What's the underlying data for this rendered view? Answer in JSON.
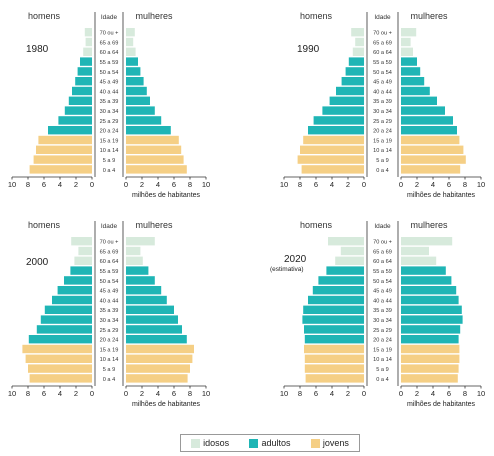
{
  "colors": {
    "idosos": "#d7eadc",
    "adultos": "#1fb5b5",
    "jovens": "#f5cf85"
  },
  "labels": {
    "homens": "homens",
    "mulheres": "mulheres",
    "idade": "Idade",
    "xlabel": "milhões de habitantes"
  },
  "legend": [
    {
      "key": "idosos",
      "label": "idosos"
    },
    {
      "key": "adultos",
      "label": "adultos"
    },
    {
      "key": "jovens",
      "label": "jovens"
    }
  ],
  "chart_data": [
    {
      "type": "bar",
      "title": "1980",
      "subtitle": "",
      "categories": [
        "70 ou +",
        "65 a 69",
        "60 a 64",
        "55 a 59",
        "50 a 54",
        "45 a 49",
        "40 a 44",
        "35 a 39",
        "30 a 34",
        "25 a 29",
        "20 a 24",
        "15 a 19",
        "10 a 14",
        "5 a 9",
        "0 a 4"
      ],
      "groups": [
        "idosos",
        "idosos",
        "idosos",
        "adultos",
        "adultos",
        "adultos",
        "adultos",
        "adultos",
        "adultos",
        "adultos",
        "adultos",
        "jovens",
        "jovens",
        "jovens",
        "jovens"
      ],
      "series": [
        {
          "name": "homens",
          "values": [
            0.9,
            0.8,
            1.1,
            1.5,
            1.8,
            2.1,
            2.5,
            2.9,
            3.4,
            4.2,
            5.5,
            6.7,
            7.0,
            7.3,
            7.8
          ]
        },
        {
          "name": "mulheres",
          "values": [
            1.1,
            0.9,
            1.2,
            1.5,
            1.8,
            2.2,
            2.6,
            3.0,
            3.6,
            4.4,
            5.6,
            6.6,
            6.9,
            7.2,
            7.6
          ]
        }
      ],
      "xlim": [
        0,
        10
      ],
      "xticks": [
        10,
        8,
        6,
        4,
        2,
        0
      ]
    },
    {
      "type": "bar",
      "title": "1990",
      "subtitle": "",
      "categories": [
        "70 ou +",
        "65 a 69",
        "60 a 64",
        "55 a 59",
        "50 a 54",
        "45 a 49",
        "40 a 44",
        "35 a 39",
        "30 a 34",
        "25 a 29",
        "20 a 24",
        "15 a 19",
        "10 a 14",
        "5 a 9",
        "0 a 4"
      ],
      "groups": [
        "idosos",
        "idosos",
        "idosos",
        "adultos",
        "adultos",
        "adultos",
        "adultos",
        "adultos",
        "adultos",
        "adultos",
        "adultos",
        "jovens",
        "jovens",
        "jovens",
        "jovens"
      ],
      "series": [
        {
          "name": "homens",
          "values": [
            1.6,
            1.1,
            1.4,
            1.9,
            2.3,
            2.8,
            3.5,
            4.3,
            5.2,
            6.3,
            7.0,
            7.6,
            8.0,
            8.3,
            7.8
          ]
        },
        {
          "name": "mulheres",
          "values": [
            1.9,
            1.2,
            1.5,
            2.0,
            2.4,
            2.9,
            3.6,
            4.5,
            5.5,
            6.5,
            7.0,
            7.3,
            7.8,
            8.1,
            7.4
          ]
        }
      ],
      "xlim": [
        0,
        10
      ],
      "xticks": [
        10,
        8,
        6,
        4,
        2,
        0
      ]
    },
    {
      "type": "bar",
      "title": "2000",
      "subtitle": "",
      "categories": [
        "70 ou +",
        "65 a 69",
        "60 a 64",
        "55 a 59",
        "50 a 54",
        "45 a 49",
        "40 a 44",
        "35 a 39",
        "30 a 34",
        "25 a 29",
        "20 a 24",
        "15 a 19",
        "10 a 14",
        "5 a 9",
        "0 a 4"
      ],
      "groups": [
        "idosos",
        "idosos",
        "idosos",
        "adultos",
        "adultos",
        "adultos",
        "adultos",
        "adultos",
        "adultos",
        "adultos",
        "adultos",
        "jovens",
        "jovens",
        "jovens",
        "jovens"
      ],
      "series": [
        {
          "name": "homens",
          "values": [
            2.6,
            1.7,
            2.2,
            2.7,
            3.5,
            4.3,
            5.0,
            5.9,
            6.4,
            6.9,
            7.9,
            8.7,
            8.3,
            8.0,
            7.8
          ]
        },
        {
          "name": "mulheres",
          "values": [
            3.6,
            1.8,
            2.1,
            2.8,
            3.6,
            4.4,
            5.1,
            6.0,
            6.5,
            7.0,
            7.6,
            8.5,
            8.3,
            8.0,
            7.7
          ]
        }
      ],
      "xlim": [
        0,
        10
      ],
      "xticks": [
        10,
        8,
        6,
        4,
        2,
        0
      ]
    },
    {
      "type": "bar",
      "title": "2020",
      "subtitle": "(estimativa)",
      "categories": [
        "70 ou +",
        "65 a 69",
        "60 a 64",
        "55 a 59",
        "50 a 54",
        "45 a 49",
        "40 a 44",
        "35 a 39",
        "30 a 34",
        "25 a 29",
        "20 a 24",
        "15 a 19",
        "10 a 14",
        "5 a 9",
        "0 a 4"
      ],
      "groups": [
        "idosos",
        "idosos",
        "idosos",
        "adultos",
        "adultos",
        "adultos",
        "adultos",
        "adultos",
        "adultos",
        "adultos",
        "adultos",
        "jovens",
        "jovens",
        "jovens",
        "jovens"
      ],
      "series": [
        {
          "name": "homens",
          "values": [
            4.5,
            2.9,
            3.6,
            4.7,
            5.7,
            6.4,
            7.0,
            7.6,
            7.7,
            7.5,
            7.4,
            7.5,
            7.4,
            7.4,
            7.3
          ]
        },
        {
          "name": "mulheres",
          "values": [
            6.4,
            3.5,
            4.4,
            5.6,
            6.3,
            6.9,
            7.2,
            7.6,
            7.7,
            7.4,
            7.2,
            7.3,
            7.3,
            7.2,
            7.1
          ]
        }
      ],
      "xlim": [
        0,
        10
      ],
      "xticks": [
        10,
        8,
        6,
        4,
        2,
        0
      ]
    }
  ]
}
